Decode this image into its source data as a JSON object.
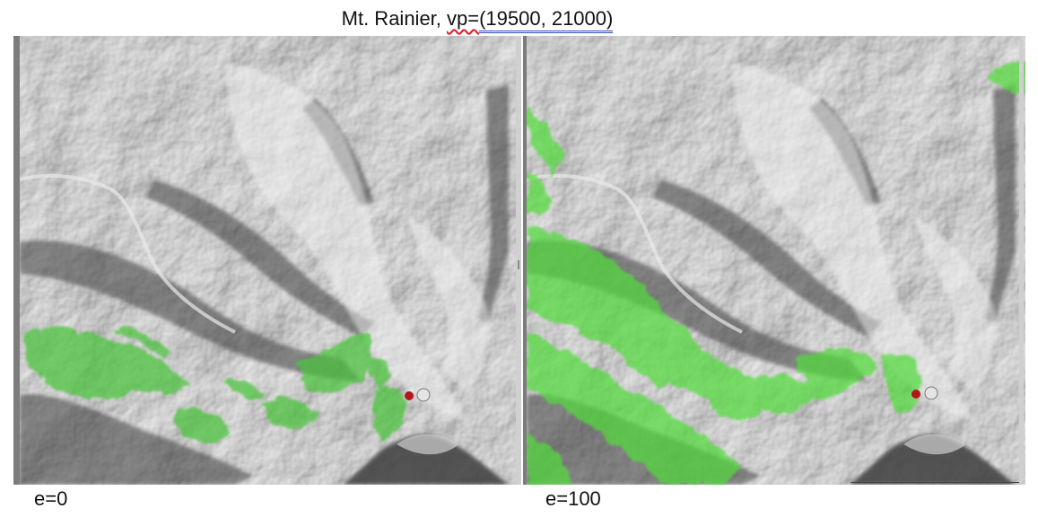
{
  "title": {
    "prefix": "Mt. Rainier, ",
    "vp_word": "vp=",
    "coords": "(19500, 21000)"
  },
  "panels": [
    {
      "caption": "e=0"
    },
    {
      "caption": "e=100"
    }
  ],
  "colors": {
    "terrain_light": "#e2e2e2",
    "terrain_mid": "#a8a8a8",
    "terrain_dark": "#4e4e4e",
    "visible_green": "#4fd23a",
    "viewpoint_marker": "#b3161c"
  },
  "icons": {
    "viewpoint": "viewpoint-marker-icon",
    "peak": "summit-circle-icon"
  }
}
